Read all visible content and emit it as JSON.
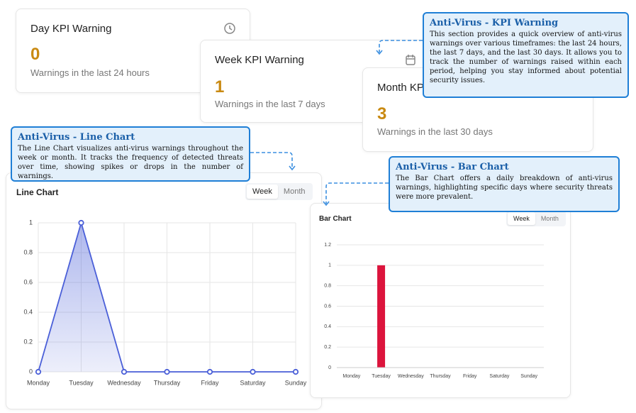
{
  "cards": [
    {
      "title": "Day KPI Warning",
      "value": "0",
      "subtitle": "Warnings in the last 24 hours"
    },
    {
      "title": "Week KPI Warning",
      "value": "1",
      "subtitle": "Warnings in the last 7 days"
    },
    {
      "title": "Month KPI Warning",
      "value": "3",
      "subtitle": "Warnings in the last 30 days"
    }
  ],
  "callouts": [
    {
      "title": "Anti-Virus - KPI Warning",
      "text": "This section provides a quick overview of anti-virus warnings over various timeframes: the last 24 hours, the last 7 days, and the last 30 days. It allows you to track the number of warnings raised within each period, helping you stay informed about potential security issues."
    },
    {
      "title": "Anti-Virus - Line Chart",
      "text": "The Line Chart visualizes anti-virus warnings throughout the week or month. It tracks the frequency of detected threats over time, showing spikes or drops in the number of warnings."
    },
    {
      "title": "Anti-Virus - Bar Chart",
      "text": "The Bar Chart offers a daily breakdown of anti-virus warnings, highlighting specific days where security threats were more prevalent."
    }
  ],
  "toggles": [
    [
      "Week",
      "Month"
    ],
    [
      "Week",
      "Month"
    ]
  ],
  "chart_data": [
    {
      "type": "line",
      "title": "Line Chart",
      "categories": [
        "Monday",
        "Tuesday",
        "Wednesday",
        "Thursday",
        "Friday",
        "Saturday",
        "Sunday"
      ],
      "values": [
        0,
        1,
        0,
        0,
        0,
        0,
        0
      ],
      "color": "#4a5fd8",
      "ylim": [
        0,
        1
      ],
      "yticks": [
        0,
        0.2,
        0.4,
        0.6,
        0.8,
        1
      ],
      "grid": true
    },
    {
      "type": "bar",
      "title": "Bar Chart",
      "categories": [
        "Monday",
        "Tuesday",
        "Wednesday",
        "Thursday",
        "Friday",
        "Saturday",
        "Sunday"
      ],
      "values": [
        0,
        1,
        0,
        0,
        0,
        0,
        0
      ],
      "color": "#dc143c",
      "ylim": [
        0,
        1.2
      ],
      "yticks": [
        0,
        0.2,
        0.4,
        0.6,
        0.8,
        1,
        1.2
      ],
      "grid": true
    }
  ]
}
